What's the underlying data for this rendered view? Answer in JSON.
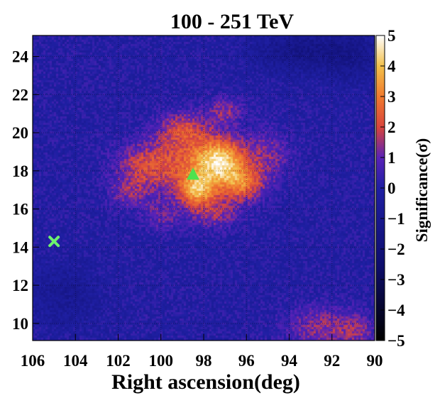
{
  "chart_data": {
    "type": "heatmap",
    "title": "100 - 251 TeV",
    "xlabel": "Right ascension(deg)",
    "ylabel": "",
    "x_ticks": [
      106,
      104,
      102,
      100,
      98,
      96,
      94,
      92,
      90
    ],
    "y_ticks": [
      10,
      12,
      14,
      16,
      18,
      20,
      22,
      24
    ],
    "xlim": [
      106,
      90
    ],
    "ylim": [
      9.1,
      25.1
    ],
    "x_reversed": true,
    "grid": true,
    "colorbar": {
      "label": "Significance(σ)",
      "range": [
        -5,
        5
      ],
      "ticks": [
        5,
        4,
        3,
        2,
        1,
        0,
        -1,
        -2,
        -3,
        -4,
        -5
      ],
      "tick_labels": [
        "5",
        "4",
        "3",
        "2",
        "1",
        "0",
        "−1",
        "−2",
        "−3",
        "−4",
        "−5"
      ],
      "colormap": [
        {
          "v": -5,
          "color": "#000000"
        },
        {
          "v": -2.5,
          "color": "#0e0e6e"
        },
        {
          "v": 0,
          "color": "#1f1fa3"
        },
        {
          "v": 1,
          "color": "#5a22b8"
        },
        {
          "v": 2,
          "color": "#d9453d"
        },
        {
          "v": 3,
          "color": "#f07a2e"
        },
        {
          "v": 4,
          "color": "#f2c04a"
        },
        {
          "v": 5,
          "color": "#ffffff"
        }
      ]
    },
    "markers": [
      {
        "shape": "triangle",
        "ra": 98.5,
        "dec": 17.8,
        "color": "#4ee24e"
      },
      {
        "shape": "cross",
        "ra": 105.0,
        "dec": 14.3,
        "color": "#6ef26e"
      }
    ],
    "significance_features": [
      {
        "ra": 97.2,
        "dec": 18.5,
        "peak": 3.4,
        "sigma_ra": 0.8,
        "sigma_dec": 0.8
      },
      {
        "ra": 98.3,
        "dec": 17.0,
        "peak": 2.8,
        "sigma_ra": 0.55,
        "sigma_dec": 0.55
      },
      {
        "ra": 96.2,
        "dec": 17.3,
        "peak": 2.3,
        "sigma_ra": 0.7,
        "sigma_dec": 0.6
      },
      {
        "ra": 98.5,
        "dec": 18.3,
        "peak": 2.0,
        "sigma_ra": 1.4,
        "sigma_dec": 1.3
      },
      {
        "ra": 100.8,
        "dec": 18.3,
        "peak": 1.6,
        "sigma_ra": 1.0,
        "sigma_dec": 0.8
      },
      {
        "ra": 99.0,
        "dec": 20.2,
        "peak": 1.6,
        "sigma_ra": 0.8,
        "sigma_dec": 0.6
      },
      {
        "ra": 97.0,
        "dec": 21.2,
        "peak": 1.3,
        "sigma_ra": 0.6,
        "sigma_dec": 0.5
      },
      {
        "ra": 101.5,
        "dec": 16.8,
        "peak": 1.1,
        "sigma_ra": 0.7,
        "sigma_dec": 0.6
      },
      {
        "ra": 95.0,
        "dec": 18.8,
        "peak": 1.2,
        "sigma_ra": 0.8,
        "sigma_dec": 1.0
      },
      {
        "ra": 97.5,
        "dec": 15.8,
        "peak": 1.3,
        "sigma_ra": 0.9,
        "sigma_dec": 0.6
      },
      {
        "ra": 100.0,
        "dec": 15.6,
        "peak": 0.9,
        "sigma_ra": 0.6,
        "sigma_dec": 0.6
      },
      {
        "ra": 92.5,
        "dec": 9.8,
        "peak": 1.4,
        "sigma_ra": 1.2,
        "sigma_dec": 0.8
      },
      {
        "ra": 90.8,
        "dec": 9.6,
        "peak": 1.0,
        "sigma_ra": 0.6,
        "sigma_dec": 0.6
      },
      {
        "ra": 93.5,
        "dec": 24.3,
        "peak": -1.3,
        "sigma_ra": 1.5,
        "sigma_dec": 0.8
      },
      {
        "ra": 91.0,
        "dec": 24.0,
        "peak": -1.0,
        "sigma_ra": 1.0,
        "sigma_dec": 1.0
      },
      {
        "ra": 104.5,
        "dec": 11.5,
        "peak": -0.8,
        "sigma_ra": 1.2,
        "sigma_dec": 1.2
      }
    ]
  }
}
